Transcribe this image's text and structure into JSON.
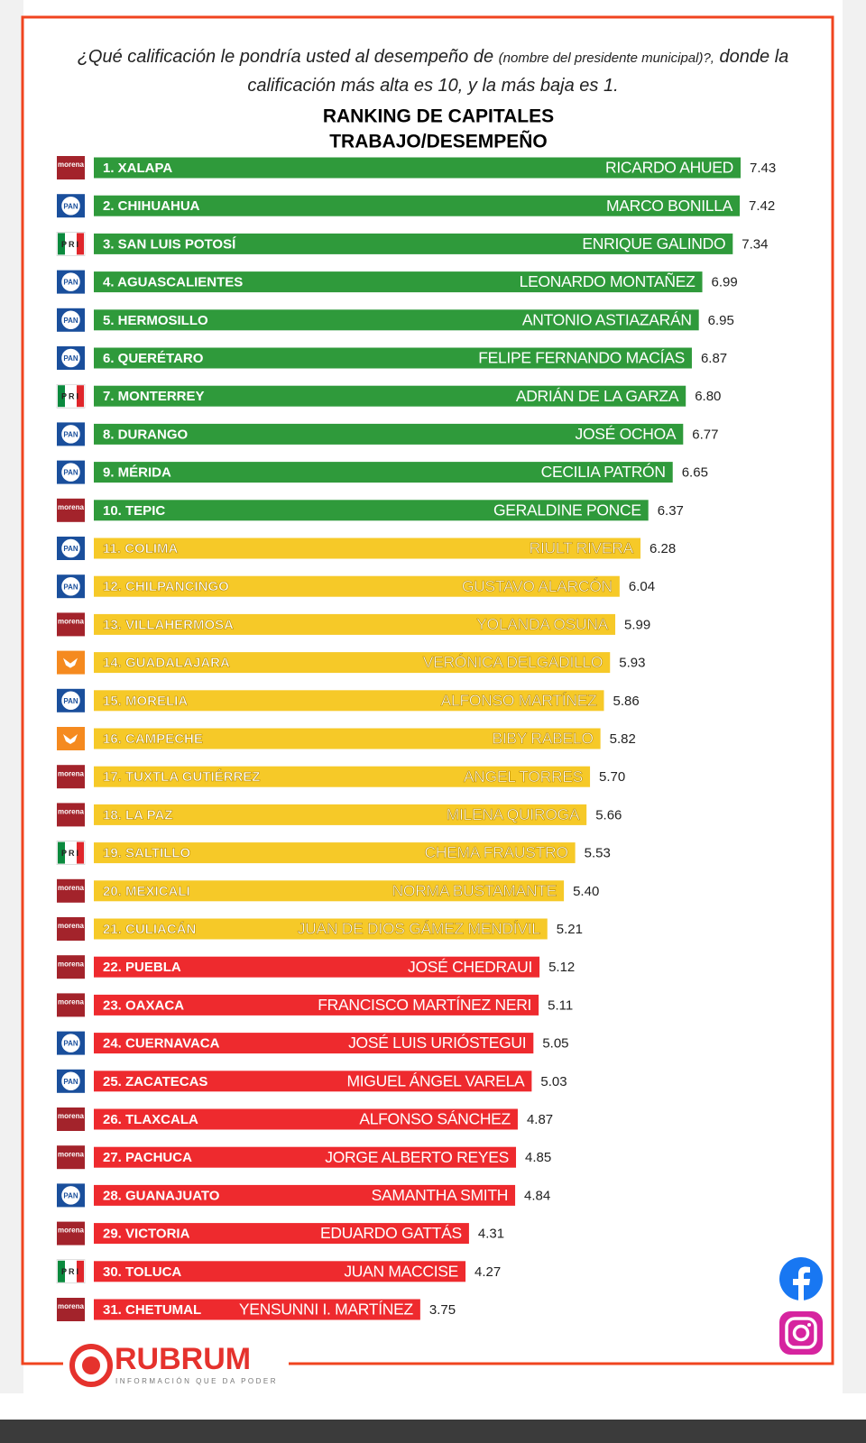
{
  "question": [
    "¿Qué calificación le pondría usted al desempeño de",
    "(nombre del presidente municipal)?,",
    "donde la calificación más alta es 10, y la más baja es 1."
  ],
  "chart_data": {
    "type": "bar",
    "title": [
      "RANKING DE CAPITALES",
      "TRABAJO/DESEMPEÑO"
    ],
    "categories": [
      "1. XALAPA",
      "2. CHIHUAHUA",
      "3. SAN LUIS POTOSÍ",
      "4. AGUASCALIENTES",
      "5. HERMOSILLO",
      "6. QUERÉTARO",
      "7. MONTERREY",
      "8. DURANGO",
      "9. MÉRIDA",
      "10. TEPIC",
      "11. COLIMA",
      "12. CHILPANCINGO",
      "13. VILLAHERMOSA",
      "14. GUADALAJARA",
      "15. MORELIA",
      "16. CAMPECHE",
      "17. TUXTLA GUTIÉRREZ",
      "18. LA PAZ",
      "19. SALTILLO",
      "20. MEXICALI",
      "21. CULIACÁN",
      "22. PUEBLA",
      "23. OAXACA",
      "24. CUERNAVACA",
      "25. ZACATECAS",
      "26. TLAXCALA",
      "27. PACHUCA",
      "28. GUANAJUATO",
      "29. VICTORIA",
      "30. TOLUCA",
      "31. CHETUMAL"
    ],
    "names": [
      "RICARDO AHUED",
      "MARCO BONILLA",
      "ENRIQUE GALINDO",
      "LEONARDO MONTAÑEZ",
      "ANTONIO ASTIAZARÁN",
      "FELIPE FERNANDO MACÍAS",
      "ADRIÁN DE LA GARZA",
      "JOSÉ OCHOA",
      "CECILIA PATRÓN",
      "GERALDINE PONCE",
      "RIULT RIVERA",
      "GUSTAVO ALARCÓN",
      "YOLANDA OSUNA",
      "VERÓNICA DELGADILLO",
      "ALFONSO MARTÍNEZ",
      "BIBY RABELO",
      "ANGEL TORRES",
      "MILENA QUIROGA",
      "CHEMA FRAUSTRO",
      "NORMA BUSTAMANTE",
      "JUAN DE DIOS GÁMEZ MENDÍVIL",
      "JOSÉ CHEDRAUI",
      "FRANCISCO MARTÍNEZ NERI",
      "JOSÉ LUIS URIÓSTEGUI",
      "MIGUEL ÁNGEL VARELA",
      "ALFONSO SÁNCHEZ",
      "JORGE ALBERTO REYES",
      "SAMANTHA SMITH",
      "EDUARDO GATTÁS",
      "JUAN MACCISE",
      "YENSUNNI I. MARTÍNEZ"
    ],
    "parties": [
      "morena",
      "PAN",
      "PRI",
      "PAN",
      "PAN",
      "PAN",
      "PRI",
      "PAN",
      "PAN",
      "morena",
      "PAN",
      "PAN",
      "morena",
      null,
      "PAN",
      null,
      "morena",
      "morena",
      "PRI",
      "morena",
      "morena",
      "morena",
      "morena",
      "PAN",
      "PAN",
      "morena",
      "morena",
      "PAN",
      "morena",
      "PRI",
      "morena"
    ],
    "values": [
      7.43,
      7.42,
      7.34,
      6.99,
      6.95,
      6.87,
      6.8,
      6.77,
      6.65,
      6.37,
      6.28,
      6.04,
      5.99,
      5.93,
      5.86,
      5.82,
      5.7,
      5.66,
      5.53,
      5.4,
      5.21,
      5.12,
      5.11,
      5.05,
      5.03,
      4.87,
      4.85,
      4.84,
      4.31,
      4.27,
      3.75
    ],
    "value_labels": [
      "7.43",
      "7.42",
      "7.34",
      "6.99",
      "6.95",
      "6.87",
      "6.80",
      "6.77",
      "6.65",
      "6.37",
      "6.28",
      "6.04",
      "5.99",
      "5.93",
      "5.86",
      "5.82",
      "5.70",
      "5.66",
      "5.53",
      "5.40",
      "5.21",
      "5.12",
      "5.11",
      "5.05",
      "5.03",
      "4.87",
      "4.85",
      "4.84",
      "4.31",
      "4.27",
      "3.75"
    ],
    "colors": [
      "#2f9a3b",
      "#2f9a3b",
      "#2f9a3b",
      "#2f9a3b",
      "#2f9a3b",
      "#2f9a3b",
      "#2f9a3b",
      "#2f9a3b",
      "#2f9a3b",
      "#2f9a3b",
      "#f6c928",
      "#f6c928",
      "#f6c928",
      "#f6c928",
      "#f6c928",
      "#f6c928",
      "#f6c928",
      "#f6c928",
      "#f6c928",
      "#f6c928",
      "#f6c928",
      "#ee2a2e",
      "#ee2a2e",
      "#ee2a2e",
      "#ee2a2e",
      "#ee2a2e",
      "#ee2a2e",
      "#ee2a2e",
      "#ee2a2e",
      "#ee2a2e",
      "#ee2a2e"
    ],
    "xlim": [
      0,
      8
    ]
  },
  "footer": {
    "brand": "RUBRUM",
    "tagline": "INFORMACIÓN QUE DA PODER"
  }
}
